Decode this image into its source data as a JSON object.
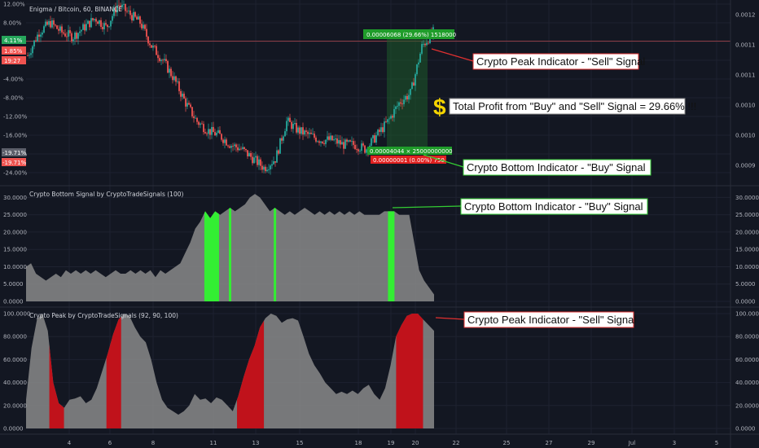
{
  "main_title": "Enigma / Bitcoin, 60, BINANCE",
  "panel2_title": "Crypto Bottom Signal by CryptoTradeSignals (100)",
  "panel3_title": "Crypto Peak by CryptoTradeSignals (92, 90, 100)",
  "callouts": {
    "peak_sell": "Crypto Peak Indicator - \"Sell\" Signal",
    "profit": "Total Profit from \"Buy\" and \"Sell\" Signal = 29.66% !!!",
    "profit_symbol": "$",
    "bottom_buy": "Crypto Bottom Indicator - \"Buy\" Signal"
  },
  "badges": {
    "top_trade": "0.00006068 (29.66%) 1518000",
    "bottom_trade": "0.00004044 × 25000000000",
    "bottom_trade2": "0.00000001 (0.00%) 750"
  },
  "left_tags": {
    "green_pct": "4.11%",
    "red_pct": "1.85%",
    "time": "19:27",
    "low1": "-19.71%",
    "low2": "-19.71%"
  },
  "colors": {
    "background": "#131722",
    "candle_up": "#26a69a",
    "candle_down": "#ef5350",
    "indicator_fill": "#8a8a8a",
    "buy_signal": "#33ee33",
    "sell_signal": "#c0121b",
    "callout_bg": "#ffffff"
  },
  "chart_data": [
    {
      "type": "line",
      "title": "Enigma / Bitcoin, 60, BINANCE",
      "x": [
        "4",
        "6",
        "8",
        "11",
        "13",
        "15",
        "18",
        "19",
        "20",
        "22",
        "25",
        "27",
        "29",
        "Jul",
        "3",
        "5"
      ],
      "left_axis_labels": [
        "12.00%",
        "8.00%",
        "4.00%",
        "0.00%",
        "-4.00%",
        "-8.00%",
        "-12.00%",
        "-16.00%",
        "-20.00%",
        "-24.00%"
      ],
      "right_axis_labels": [
        "0.0012",
        "0.0011",
        "0.0011",
        "0.0010",
        "0.0010",
        "0.0009"
      ],
      "price_path_pct": [
        1,
        6,
        8,
        6,
        5,
        7,
        9,
        7,
        12,
        10,
        8,
        3,
        0,
        -4,
        -9,
        -13,
        -15,
        -16,
        -18,
        -19,
        -21,
        -23,
        -21,
        -13,
        -15,
        -16,
        -17,
        -17,
        -18,
        -18,
        -19,
        -16,
        -13,
        -9,
        -7,
        3,
        6
      ],
      "buy_signal_pct": -19.71,
      "sell_signal_pct": 4.11,
      "profit_pct": 29.66
    },
    {
      "type": "area",
      "title": "Crypto Bottom Signal by CryptoTradeSignals (100)",
      "y_axis_labels": [
        "30.0000",
        "25.0000",
        "20.0000",
        "15.0000",
        "10.0000",
        "5.0000",
        "0.0000"
      ],
      "ylim": [
        0,
        31.5
      ],
      "values": [
        10,
        11,
        8,
        7,
        6,
        7,
        8,
        7,
        9,
        8,
        9,
        8,
        9,
        8,
        9,
        8,
        7,
        8,
        9,
        8,
        8,
        9,
        8,
        9,
        8,
        9,
        7,
        9,
        8,
        9,
        10,
        11,
        14,
        17,
        21,
        23,
        26,
        24,
        26,
        25,
        26,
        27,
        26,
        27,
        28,
        30,
        31,
        30,
        28,
        26,
        27,
        26,
        25,
        26,
        25,
        26,
        27,
        26,
        25,
        26,
        25,
        26,
        25,
        26,
        25,
        26,
        25,
        26,
        25,
        25,
        25,
        25,
        26,
        26,
        26,
        25,
        25,
        25,
        17,
        9,
        6,
        4,
        2
      ],
      "buy_signal_ranges": [
        [
          0.44,
          0.47
        ],
        [
          0.5,
          0.5
        ],
        [
          0.61,
          0.61
        ],
        [
          0.89,
          0.9
        ]
      ]
    },
    {
      "type": "area",
      "title": "Crypto Peak by CryptoTradeSignals (92, 90, 100)",
      "y_axis_labels": [
        "100.0000",
        "80.0000",
        "60.0000",
        "40.0000",
        "20.0000",
        "0.0000"
      ],
      "ylim": [
        0,
        100
      ],
      "values": [
        25,
        70,
        95,
        100,
        85,
        40,
        22,
        18,
        25,
        26,
        28,
        22,
        25,
        35,
        50,
        65,
        82,
        95,
        100,
        98,
        88,
        80,
        75,
        60,
        40,
        25,
        18,
        15,
        12,
        15,
        20,
        30,
        25,
        26,
        22,
        27,
        25,
        20,
        15,
        28,
        45,
        60,
        72,
        88,
        96,
        100,
        98,
        92,
        95,
        96,
        94,
        80,
        65,
        55,
        48,
        40,
        35,
        30,
        32,
        30,
        33,
        30,
        35,
        38,
        30,
        25,
        35,
        55,
        80,
        90,
        98,
        100,
        100,
        95,
        90,
        85
      ],
      "sell_signal_ranges": [
        [
          0.06,
          0.09
        ],
        [
          0.2,
          0.23
        ],
        [
          0.52,
          0.58
        ],
        [
          0.91,
          0.97
        ]
      ]
    }
  ]
}
